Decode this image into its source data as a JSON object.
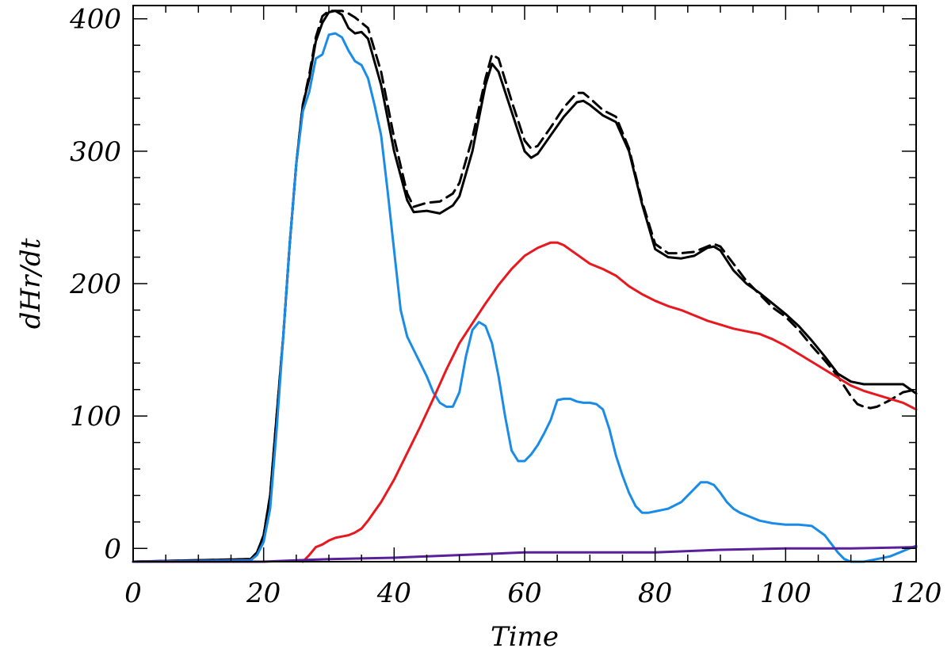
{
  "chart_data": {
    "type": "line",
    "title": "",
    "xlabel": "Time",
    "ylabel": "dHr/dt",
    "xlim": [
      0,
      120
    ],
    "ylim": [
      -10,
      410
    ],
    "xticks": [
      0,
      20,
      40,
      60,
      80,
      100,
      120
    ],
    "xtick_labels": [
      "0",
      "20",
      "40",
      "60",
      "80",
      "100",
      "120"
    ],
    "yticks": [
      0,
      100,
      200,
      300,
      400
    ],
    "ytick_labels": [
      "0",
      "100",
      "200",
      "300",
      "400"
    ],
    "series": [
      {
        "name": "total",
        "color": "#000000",
        "dash": "solid",
        "x": [
          0,
          18,
          19,
          20,
          21,
          22,
          23,
          24,
          25,
          26,
          27,
          28,
          29,
          30,
          31,
          32,
          33,
          34,
          35,
          36,
          38,
          40,
          42,
          43,
          45,
          47,
          49,
          50,
          52,
          54,
          55,
          56,
          58,
          60,
          61,
          62,
          64,
          66,
          68,
          69,
          70,
          72,
          74,
          76,
          78,
          80,
          82,
          84,
          86,
          88,
          89,
          90,
          92,
          94,
          96,
          98,
          100,
          102,
          104,
          106,
          108,
          110,
          112,
          114,
          116,
          118,
          120
        ],
        "y": [
          -10,
          -8,
          -3,
          10,
          40,
          100,
          160,
          230,
          290,
          335,
          355,
          383,
          397,
          405,
          406,
          403,
          393,
          389,
          390,
          385,
          350,
          300,
          263,
          254,
          255,
          253,
          259,
          266,
          300,
          350,
          366,
          360,
          330,
          300,
          295,
          298,
          312,
          326,
          337,
          338,
          335,
          327,
          322,
          300,
          260,
          226,
          220,
          219,
          221,
          227,
          228,
          225,
          210,
          200,
          193,
          185,
          177,
          168,
          157,
          145,
          132,
          126,
          124,
          124,
          124,
          124,
          117
        ]
      },
      {
        "name": "total (dashed)",
        "color": "#000000",
        "dash": "dashed",
        "x": [
          0,
          18,
          19,
          20,
          21,
          22,
          23,
          24,
          25,
          26,
          27,
          28,
          29,
          30,
          31,
          32,
          33,
          34,
          35,
          36,
          38,
          40,
          42,
          43,
          45,
          47,
          49,
          50,
          52,
          54,
          55,
          56,
          58,
          60,
          61,
          62,
          64,
          66,
          68,
          69,
          70,
          72,
          74,
          76,
          78,
          80,
          82,
          84,
          86,
          88,
          89,
          90,
          92,
          94,
          96,
          98,
          100,
          102,
          104,
          106,
          108,
          110,
          111,
          112,
          113,
          114,
          116,
          118,
          120
        ],
        "y": [
          -10,
          -8,
          -3,
          10,
          40,
          100,
          160,
          230,
          290,
          335,
          358,
          386,
          402,
          406,
          406,
          406,
          404,
          401,
          397,
          393,
          360,
          310,
          268,
          258,
          261,
          262,
          268,
          276,
          310,
          355,
          373,
          370,
          338,
          308,
          302,
          304,
          318,
          333,
          344,
          344,
          340,
          331,
          326,
          302,
          262,
          230,
          223,
          223,
          224,
          228,
          230,
          228,
          215,
          202,
          192,
          182,
          175,
          165,
          153,
          142,
          130,
          115,
          109,
          107,
          106,
          107,
          112,
          118,
          120
        ]
      },
      {
        "name": "blue",
        "color": "#1a8ce8",
        "dash": "solid",
        "x": [
          0,
          18,
          19,
          20,
          21,
          22,
          23,
          24,
          25,
          26,
          27,
          28,
          29,
          30,
          31,
          32,
          33,
          34,
          35,
          36,
          37,
          38,
          39,
          40,
          41,
          42,
          43,
          44,
          45,
          46,
          47,
          48,
          49,
          50,
          51,
          52,
          53,
          54,
          55,
          56,
          57,
          58,
          59,
          60,
          61,
          62,
          63,
          64,
          65,
          66,
          67,
          68,
          69,
          70,
          71,
          72,
          73,
          74,
          75,
          76,
          77,
          78,
          79,
          80,
          81,
          82,
          84,
          86,
          87,
          88,
          89,
          90,
          91,
          92,
          93,
          94,
          96,
          98,
          100,
          102,
          104,
          106,
          108,
          109,
          110,
          111,
          112,
          114,
          116,
          118,
          120
        ],
        "y": [
          -10,
          -9,
          -5,
          5,
          30,
          90,
          160,
          230,
          290,
          330,
          345,
          370,
          373,
          388,
          389,
          386,
          376,
          368,
          365,
          355,
          335,
          312,
          270,
          225,
          180,
          160,
          150,
          140,
          130,
          118,
          110,
          107,
          107,
          118,
          145,
          165,
          171,
          168,
          155,
          130,
          100,
          74,
          66,
          66,
          71,
          78,
          87,
          97,
          112,
          113,
          113,
          111,
          110,
          110,
          109,
          105,
          90,
          70,
          55,
          42,
          32,
          27,
          27,
          28,
          29,
          30,
          35,
          45,
          50,
          50,
          48,
          42,
          35,
          30,
          27,
          25,
          21,
          19,
          18,
          18,
          17,
          10,
          -3,
          -8,
          -10,
          -10,
          -10,
          -8,
          -6,
          -2,
          2
        ]
      },
      {
        "name": "red",
        "color": "#e8181e",
        "dash": "solid",
        "x": [
          26,
          27,
          28,
          29,
          30,
          31,
          32,
          33,
          34,
          35,
          36,
          37,
          38,
          40,
          42,
          44,
          46,
          48,
          50,
          52,
          54,
          56,
          58,
          60,
          62,
          64,
          65,
          66,
          68,
          70,
          72,
          74,
          76,
          78,
          80,
          82,
          84,
          86,
          88,
          90,
          92,
          94,
          96,
          98,
          100,
          102,
          104,
          106,
          108,
          110,
          112,
          114,
          116,
          118,
          120
        ],
        "y": [
          -10,
          -5,
          1,
          3,
          6,
          8,
          9,
          10,
          12,
          15,
          21,
          28,
          35,
          52,
          72,
          92,
          113,
          135,
          155,
          170,
          185,
          199,
          211,
          221,
          227,
          231,
          231,
          229,
          222,
          215,
          211,
          206,
          198,
          192,
          187,
          183,
          180,
          176,
          172,
          169,
          166,
          164,
          162,
          158,
          153,
          147,
          141,
          135,
          129,
          123,
          119,
          116,
          113,
          110,
          105
        ]
      },
      {
        "name": "purple",
        "color": "#5a1f9a",
        "dash": "solid",
        "x": [
          0,
          20,
          25,
          30,
          40,
          50,
          60,
          70,
          80,
          90,
          100,
          110,
          120
        ],
        "y": [
          -10,
          -10,
          -9,
          -8,
          -7,
          -5,
          -3,
          -3,
          -3,
          -1,
          0,
          0,
          1
        ]
      }
    ]
  }
}
